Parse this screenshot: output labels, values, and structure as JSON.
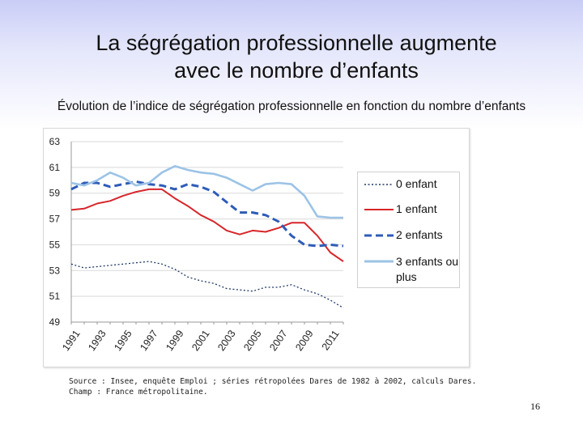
{
  "slide": {
    "title_line1": "La ségrégation professionnelle augmente",
    "title_line2": "avec le nombre d’enfants",
    "subtitle": "Évolution de l’indice de ségrégation professionnelle en fonction du nombre d’enfants",
    "source": "Source : Insee, enquête Emploi ; séries rétropolées Dares de 1982 à 2002, calculs Dares.",
    "champ": "Champ : France métropolitaine.",
    "page_number": "16"
  },
  "chart_data": {
    "type": "line",
    "title": "",
    "xlabel": "",
    "ylabel": "",
    "ylim": [
      49,
      63
    ],
    "yticks": [
      63,
      61,
      59,
      57,
      55,
      53,
      51,
      49
    ],
    "xtick_labels": [
      "1991",
      "1993",
      "1995",
      "1997",
      "1999",
      "2001",
      "2003",
      "2005",
      "2007",
      "2009",
      "2011"
    ],
    "x": [
      1991,
      1992,
      1993,
      1994,
      1995,
      1996,
      1997,
      1998,
      1999,
      2000,
      2001,
      2002,
      2003,
      2004,
      2005,
      2006,
      2007,
      2008,
      2009,
      2010,
      2011,
      2012
    ],
    "grid": true,
    "legend_position": "right",
    "series": [
      {
        "name": "0 enfant",
        "color": "#1f3864",
        "style": "dotted",
        "values": [
          53.5,
          53.2,
          53.3,
          53.4,
          53.5,
          53.6,
          53.7,
          53.5,
          53.1,
          52.5,
          52.2,
          52.0,
          51.6,
          51.5,
          51.4,
          51.7,
          51.7,
          51.9,
          51.5,
          51.2,
          50.7,
          50.1
        ]
      },
      {
        "name": "1 enfant",
        "color": "#d7262a",
        "style": "solid",
        "values": [
          57.7,
          57.8,
          58.2,
          58.4,
          58.8,
          59.1,
          59.3,
          59.3,
          58.6,
          58.0,
          57.3,
          56.8,
          56.1,
          55.8,
          56.1,
          56.0,
          56.3,
          56.7,
          56.7,
          55.7,
          54.4,
          53.7
        ]
      },
      {
        "name": "2 enfants",
        "color": "#2e5cb8",
        "style": "dashed",
        "values": [
          59.3,
          59.8,
          59.8,
          59.5,
          59.7,
          59.9,
          59.7,
          59.6,
          59.3,
          59.7,
          59.5,
          59.1,
          58.3,
          57.5,
          57.5,
          57.3,
          56.8,
          55.7,
          55.0,
          54.9,
          55.0,
          54.9
        ]
      },
      {
        "name": "3 enfants ou plus",
        "color": "#9cc3e6",
        "style": "solid",
        "values": [
          59.8,
          59.6,
          60.0,
          60.6,
          60.2,
          59.6,
          59.8,
          60.6,
          61.1,
          60.8,
          60.6,
          60.5,
          60.2,
          59.7,
          59.2,
          59.7,
          59.8,
          59.7,
          58.8,
          57.2,
          57.1,
          57.1
        ]
      }
    ]
  }
}
